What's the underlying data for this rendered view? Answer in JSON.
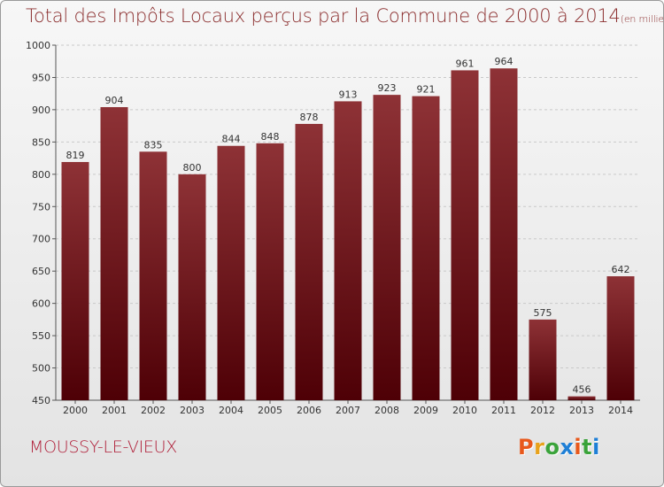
{
  "chart_data": {
    "type": "bar",
    "title": "Total des Impôts Locaux perçus par la Commune de 2000 à 2014",
    "title_unit": "(en milliers d'€)",
    "categories": [
      "2000",
      "2001",
      "2002",
      "2003",
      "2004",
      "2005",
      "2006",
      "2007",
      "2008",
      "2009",
      "2010",
      "2011",
      "2012",
      "2013",
      "2014"
    ],
    "values": [
      819,
      904,
      835,
      800,
      844,
      848,
      878,
      913,
      923,
      921,
      961,
      964,
      575,
      456,
      642
    ],
    "ylim": [
      450,
      1000
    ],
    "yticks": [
      450,
      500,
      550,
      600,
      650,
      700,
      750,
      800,
      850,
      900,
      950,
      1000
    ],
    "grid": true,
    "xlabel": "",
    "ylabel": "",
    "bar_color": "#7a1f24"
  },
  "footer": {
    "commune": "MOUSSY-LE-VIEUX",
    "logo_letters": [
      "P",
      "r",
      "o",
      "x",
      "i",
      "t",
      "i"
    ],
    "logo_colors": [
      "#e8581b",
      "#e8a21b",
      "#3aa33a",
      "#1e7fd6",
      "#e8581b",
      "#3aa33a",
      "#1e7fd6"
    ]
  }
}
